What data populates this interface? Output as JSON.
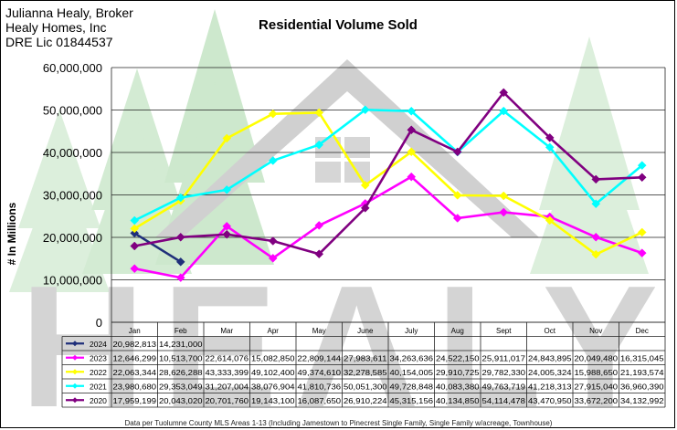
{
  "header": {
    "broker_lines": [
      "Julianna Healy, Broker",
      "Healy Homes, Inc",
      "DRE Lic 01844537"
    ]
  },
  "watermark": {
    "text": "HEALY"
  },
  "footer": "Data per Tuolumne County MLS Areas 1-13 (Including Jamestown to Pinecrest Single Family, Single Family w/acreage, Townhouse)",
  "chart_data": {
    "type": "line",
    "title": "Residential Volume Sold",
    "xlabel": "",
    "ylabel": "# In Millions",
    "ylim": [
      0,
      60000000
    ],
    "yticks": [
      0,
      10000000,
      20000000,
      30000000,
      40000000,
      50000000,
      60000000
    ],
    "ytick_labels": [
      "0",
      "10,000,000",
      "20,000,000",
      "30,000,000",
      "40,000,000",
      "50,000,000",
      "60,000,000"
    ],
    "grid": true,
    "categories": [
      "Jan",
      "Feb",
      "Mar",
      "Apr",
      "May",
      "June",
      "July",
      "Aug",
      "Sept",
      "Oct",
      "Nov",
      "Dec"
    ],
    "series": [
      {
        "name": "2024",
        "color": "#1f2f7a",
        "marker": "diamond",
        "values": [
          20982813,
          14231000,
          null,
          null,
          null,
          null,
          null,
          null,
          null,
          null,
          null,
          null
        ],
        "labels": [
          "20,982,813",
          "14,231,000",
          "",
          "",
          "",
          "",
          "",
          "",
          "",
          "",
          "",
          ""
        ]
      },
      {
        "name": "2023",
        "color": "#ff00ff",
        "marker": "diamond",
        "values": [
          12646299,
          10513700,
          22614076,
          15082850,
          22809144,
          27983611,
          34263636,
          24522150,
          25911017,
          24843895,
          20049480,
          16315045
        ],
        "labels": [
          "12,646,299",
          "10,513,700",
          "22,614,076",
          "15,082,850",
          "22,809,144",
          "27,983,611",
          "34,263,636",
          "24,522,150",
          "25,911,017",
          "24,843,895",
          "20,049,480",
          "16,315,045"
        ]
      },
      {
        "name": "2022",
        "color": "#ffff00",
        "marker": "diamond",
        "values": [
          22063344,
          28626288,
          43333399,
          49102400,
          49374610,
          32278585,
          40154005,
          29910725,
          29782330,
          24005324,
          15988650,
          21193574
        ],
        "labels": [
          "22,063,344",
          "28,626,288",
          "43,333,399",
          "49,102,400",
          "49,374,610",
          "32,278,585",
          "40,154,005",
          "29,910,725",
          "29,782,330",
          "24,005,324",
          "15,988,650",
          "21,193,574"
        ]
      },
      {
        "name": "2021",
        "color": "#00ffff",
        "marker": "diamond",
        "values": [
          23980680,
          29353049,
          31207004,
          38076904,
          41810736,
          50051300,
          49728848,
          40083380,
          49763719,
          41218313,
          27915040,
          36960390
        ],
        "labels": [
          "23,980,680",
          "29,353,049",
          "31,207,004",
          "38,076,904",
          "41,810,736",
          "50,051,300",
          "49,728,848",
          "40,083,380",
          "49,763,719",
          "41,218,313",
          "27,915,040",
          "36,960,390"
        ]
      },
      {
        "name": "2020",
        "color": "#800080",
        "marker": "diamond",
        "values": [
          17959199,
          20043020,
          20701760,
          19143100,
          16087650,
          26910224,
          45315156,
          40134850,
          54114478,
          43470950,
          33672200,
          34132992
        ],
        "labels": [
          "17,959,199",
          "20,043,020",
          "20,701,760",
          "19,143,100",
          "16,087,650",
          "26,910,224",
          "45,315,156",
          "40,134,850",
          "54,114,478",
          "43,470,950",
          "33,672,200",
          "34,132,992"
        ]
      }
    ]
  }
}
